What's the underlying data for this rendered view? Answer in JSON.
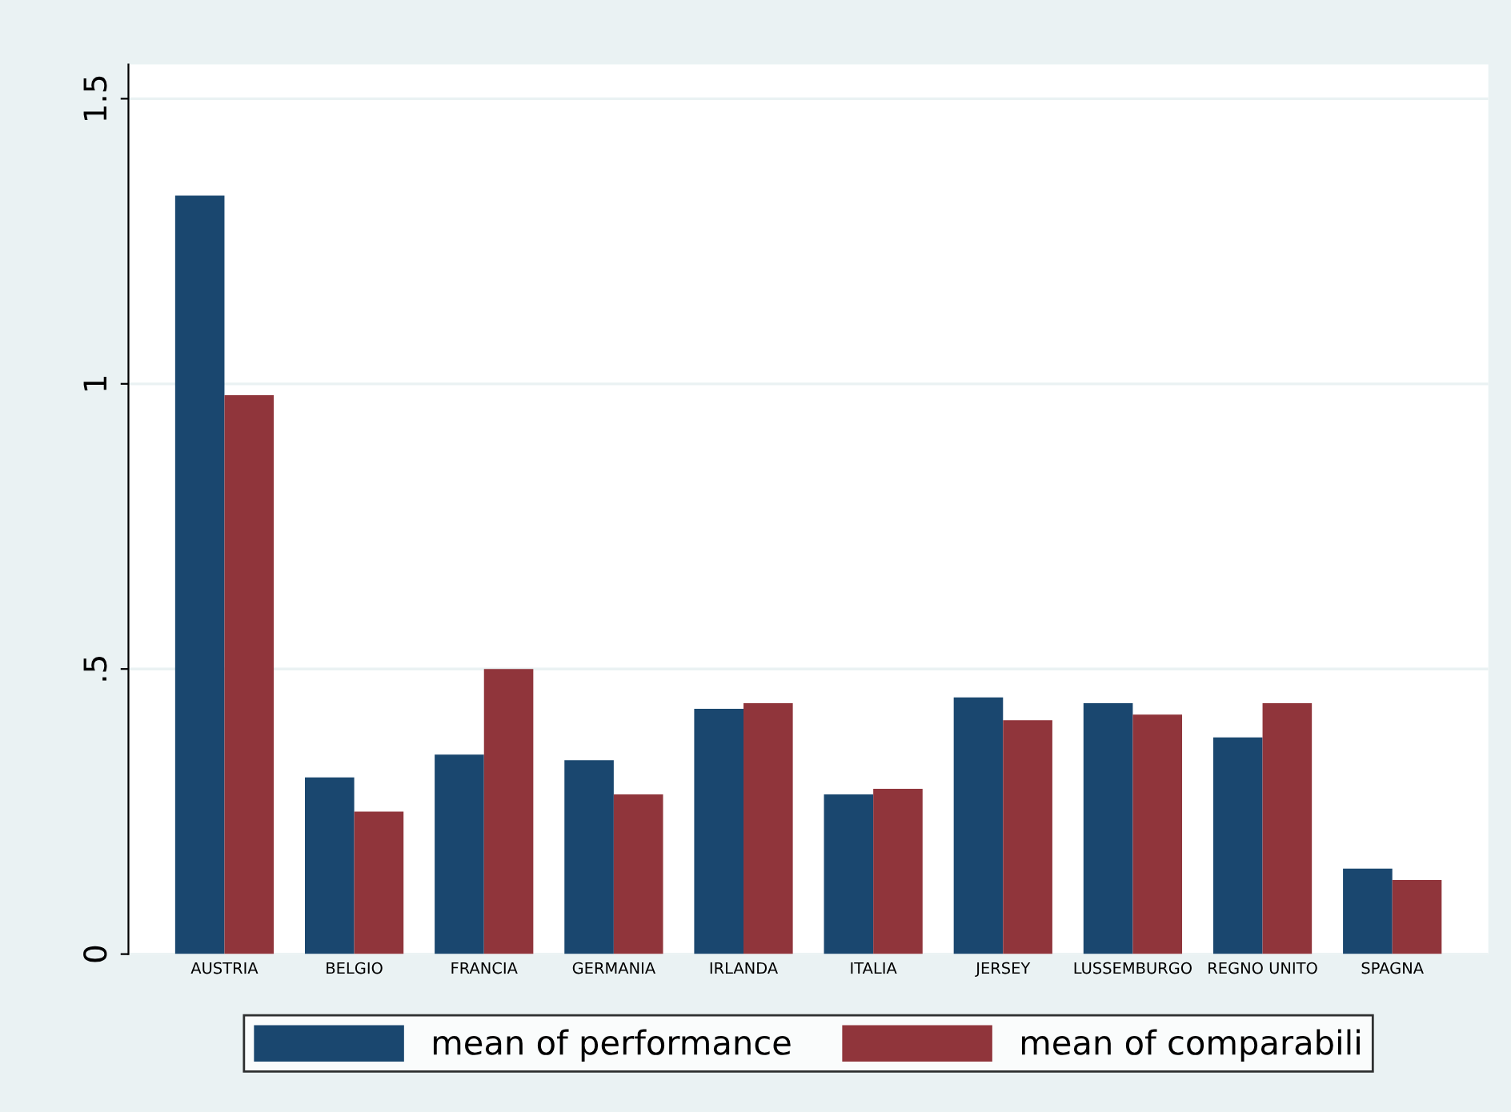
{
  "chart_data": {
    "type": "bar",
    "categories": [
      "AUSTRIA",
      "BELGIO",
      "FRANCIA",
      "GERMANIA",
      "IRLANDA",
      "ITALIA",
      "JERSEY",
      "LUSSEMBURGO",
      "REGNO UNITO",
      "SPAGNA"
    ],
    "series": [
      {
        "name": "mean of performance",
        "color": "#1a476f",
        "values": [
          1.33,
          0.31,
          0.35,
          0.34,
          0.43,
          0.28,
          0.45,
          0.44,
          0.38,
          0.15
        ]
      },
      {
        "name": "mean of comparabili",
        "color": "#90353b",
        "values": [
          0.98,
          0.25,
          0.5,
          0.28,
          0.44,
          0.29,
          0.41,
          0.42,
          0.44,
          0.13
        ]
      }
    ],
    "ylim": [
      0,
      1.56
    ],
    "yticks": [
      0,
      {
        "value": 0.5,
        "label": ".5"
      },
      1,
      1.5
    ],
    "grid": "y",
    "legend": "bottom"
  }
}
